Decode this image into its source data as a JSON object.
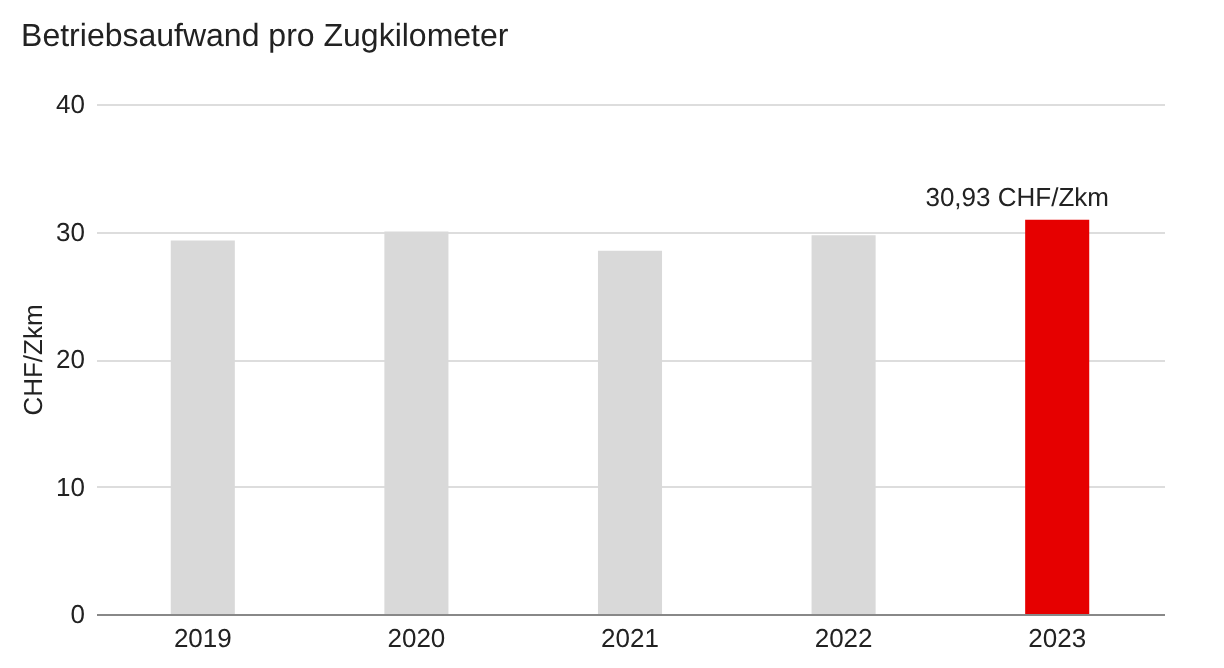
{
  "chart_data": {
    "type": "bar",
    "title": "Betriebsaufwand pro Zugkilometer",
    "ylabel": "CHF/Zkm",
    "categories": [
      "2019",
      "2020",
      "2021",
      "2022",
      "2023"
    ],
    "values": [
      29.3,
      30.0,
      28.5,
      29.7,
      30.93
    ],
    "colors": [
      "#d9d9d9",
      "#d9d9d9",
      "#d9d9d9",
      "#d9d9d9",
      "#e60000"
    ],
    "value_labels": [
      null,
      null,
      null,
      null,
      "30,93 CHF/Zkm"
    ],
    "ylim": [
      0,
      40
    ],
    "yticks": [
      0,
      10,
      20,
      30,
      40
    ],
    "grid": "y"
  }
}
